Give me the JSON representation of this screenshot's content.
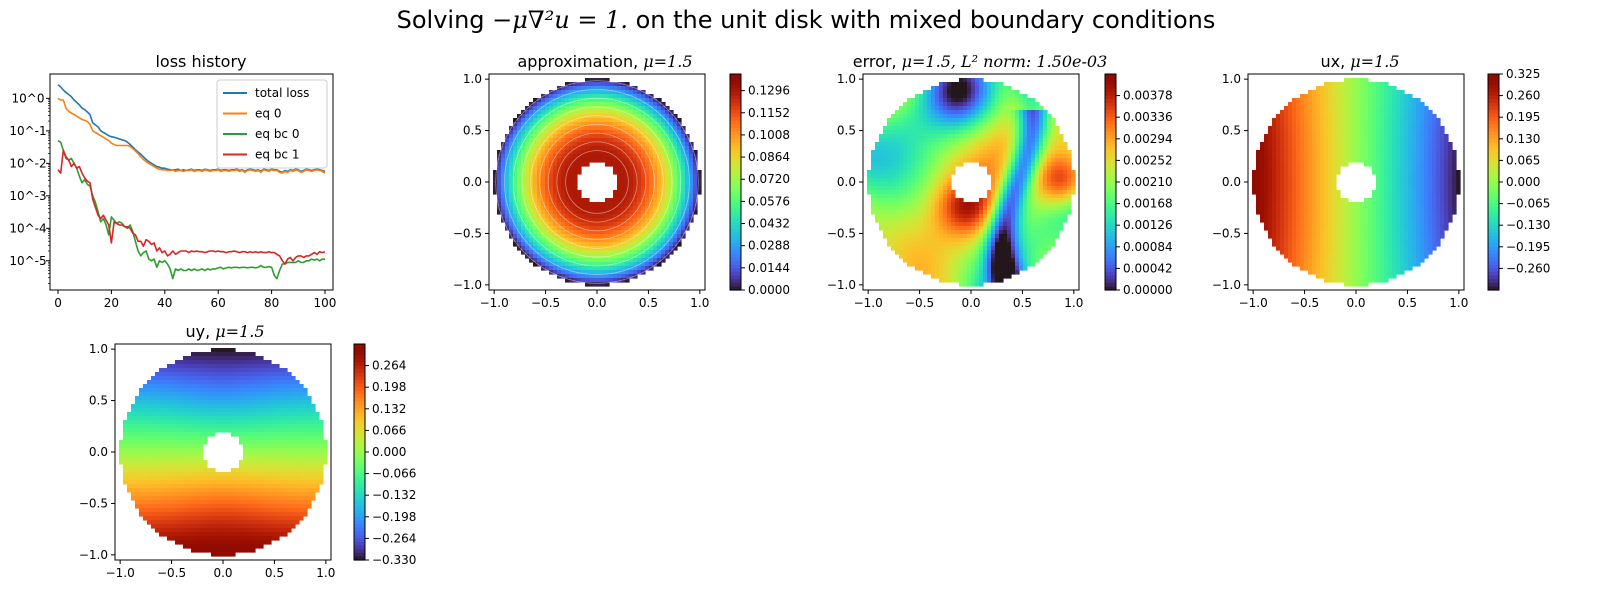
{
  "figure": {
    "title_prefix": "Solving",
    "title_equation": "−μ∇²u = 1.",
    "title_suffix": "on the unit disk with mixed boundary conditions"
  },
  "chart_data": [
    {
      "type": "line",
      "title": "loss history",
      "yscale": "log",
      "xlim": [
        -3,
        103
      ],
      "ylim_log10": [
        -5.9,
        0.75
      ],
      "xticks": [
        0,
        20,
        40,
        60,
        80,
        100
      ],
      "yticks": [
        "10^0",
        "10^-1",
        "10^-2",
        "10^-3",
        "10^-4",
        "10^-5"
      ],
      "legend_position": "top-right",
      "series": [
        {
          "name": "total loss",
          "color": "#1f77b4",
          "log10_values": [
            0.42,
            0.35,
            0.26,
            0.18,
            0.12,
            0.05,
            -0.05,
            -0.12,
            -0.2,
            -0.3,
            -0.35,
            -0.42,
            -0.5,
            -0.75,
            -0.82,
            -0.88,
            -1.0,
            -1.05,
            -1.1,
            -1.15,
            -1.18,
            -1.2,
            -1.22,
            -1.25,
            -1.28,
            -1.3,
            -1.35,
            -1.42,
            -1.5,
            -1.58,
            -1.65,
            -1.72,
            -1.8,
            -1.88,
            -1.95,
            -2.0,
            -2.05,
            -2.1,
            -2.12,
            -2.15,
            -2.15,
            -2.18,
            -2.2,
            -2.2,
            -2.2,
            -2.18,
            -2.22,
            -2.2,
            -2.22,
            -2.2,
            -2.18,
            -2.22,
            -2.2,
            -2.2,
            -2.22,
            -2.18,
            -2.2,
            -2.22,
            -2.2,
            -2.2,
            -2.18,
            -2.22,
            -2.2,
            -2.2,
            -2.22,
            -2.2,
            -2.2,
            -2.18,
            -2.22,
            -2.2,
            -2.25,
            -2.2,
            -2.18,
            -2.2,
            -2.22,
            -2.2,
            -2.25,
            -2.18,
            -2.2,
            -2.22,
            -2.18,
            -2.2,
            -2.2,
            -2.25,
            -2.28,
            -2.22,
            -2.25,
            -2.2,
            -2.22,
            -2.18,
            -2.2,
            -2.25,
            -2.22,
            -2.18,
            -2.2,
            -2.22,
            -2.2,
            -2.18,
            -2.2,
            -2.22,
            -2.25
          ]
        },
        {
          "name": "eq 0",
          "color": "#ff7f0e",
          "log10_values": [
            0.0,
            -0.05,
            -0.05,
            -0.3,
            -0.4,
            -0.45,
            -0.5,
            -0.55,
            -0.6,
            -0.65,
            -0.68,
            -0.72,
            -0.8,
            -1.0,
            -1.05,
            -1.1,
            -1.15,
            -1.2,
            -1.25,
            -1.3,
            -1.38,
            -1.42,
            -1.45,
            -1.45,
            -1.45,
            -1.45,
            -1.45,
            -1.48,
            -1.55,
            -1.62,
            -1.7,
            -1.8,
            -1.88,
            -1.95,
            -2.0,
            -2.05,
            -2.1,
            -2.15,
            -2.18,
            -2.2,
            -2.2,
            -2.22,
            -2.22,
            -2.2,
            -2.25,
            -2.22,
            -2.22,
            -2.25,
            -2.22,
            -2.22,
            -2.2,
            -2.25,
            -2.22,
            -2.22,
            -2.25,
            -2.2,
            -2.22,
            -2.25,
            -2.22,
            -2.22,
            -2.2,
            -2.25,
            -2.22,
            -2.22,
            -2.25,
            -2.22,
            -2.22,
            -2.2,
            -2.25,
            -2.22,
            -2.28,
            -2.22,
            -2.2,
            -2.22,
            -2.25,
            -2.22,
            -2.28,
            -2.2,
            -2.22,
            -2.25,
            -2.2,
            -2.22,
            -2.22,
            -2.28,
            -2.3,
            -2.25,
            -2.28,
            -2.22,
            -2.25,
            -2.2,
            -2.22,
            -2.28,
            -2.25,
            -2.2,
            -2.22,
            -2.25,
            -2.22,
            -2.2,
            -2.22,
            -2.25,
            -2.3
          ]
        },
        {
          "name": "eq bc 0",
          "color": "#2ca02c",
          "log10_values": [
            -1.3,
            -1.35,
            -1.6,
            -1.85,
            -1.9,
            -1.85,
            -2.0,
            -2.15,
            -2.4,
            -2.6,
            -2.5,
            -2.65,
            -2.7,
            -3.0,
            -3.2,
            -3.5,
            -3.8,
            -3.7,
            -3.9,
            -4.2,
            -3.65,
            -3.75,
            -3.85,
            -3.8,
            -3.85,
            -3.95,
            -4.0,
            -3.9,
            -4.1,
            -4.4,
            -4.7,
            -4.85,
            -4.75,
            -4.7,
            -4.95,
            -5.0,
            -4.95,
            -5.2,
            -5.0,
            -5.05,
            -5.0,
            -5.1,
            -5.25,
            -5.55,
            -5.25,
            -5.3,
            -5.25,
            -5.3,
            -5.3,
            -5.25,
            -5.3,
            -5.25,
            -5.3,
            -5.28,
            -5.25,
            -5.3,
            -5.25,
            -5.28,
            -5.25,
            -5.25,
            -5.22,
            -5.2,
            -5.25,
            -5.22,
            -5.2,
            -5.22,
            -5.2,
            -5.2,
            -5.22,
            -5.2,
            -5.2,
            -5.22,
            -5.2,
            -5.2,
            -5.22,
            -5.2,
            -5.15,
            -5.2,
            -5.2,
            -5.18,
            -5.2,
            -5.45,
            -5.55,
            -5.3,
            -5.1,
            -5.1,
            -5.05,
            -5.05,
            -5.05,
            -5.05,
            -5.0,
            -5.05,
            -5.05,
            -5.0,
            -5.0,
            -4.95,
            -4.98,
            -4.95,
            -5.0,
            -4.95,
            -4.95
          ]
        },
        {
          "name": "eq bc 1",
          "color": "#d62728",
          "log10_values": [
            -2.2,
            -2.3,
            -1.6,
            -1.8,
            -1.9,
            -2.1,
            -2.0,
            -2.15,
            -2.1,
            -2.3,
            -2.45,
            -2.55,
            -2.6,
            -3.1,
            -3.35,
            -3.6,
            -3.7,
            -3.6,
            -3.75,
            -3.9,
            -4.45,
            -3.8,
            -3.85,
            -3.9,
            -3.9,
            -3.95,
            -3.95,
            -4.0,
            -4.15,
            -4.2,
            -4.4,
            -4.4,
            -4.55,
            -4.35,
            -4.4,
            -4.5,
            -4.45,
            -4.7,
            -4.6,
            -4.75,
            -4.7,
            -4.85,
            -4.8,
            -4.7,
            -4.8,
            -4.75,
            -4.7,
            -4.7,
            -4.7,
            -4.75,
            -4.7,
            -4.72,
            -4.7,
            -4.72,
            -4.72,
            -4.75,
            -4.72,
            -4.7,
            -4.7,
            -4.72,
            -4.7,
            -4.72,
            -4.72,
            -4.75,
            -4.72,
            -4.72,
            -4.7,
            -4.72,
            -4.75,
            -4.72,
            -4.72,
            -4.75,
            -4.72,
            -4.75,
            -4.72,
            -4.75,
            -4.72,
            -4.75,
            -4.75,
            -4.72,
            -4.75,
            -4.75,
            -4.8,
            -4.85,
            -5.0,
            -5.1,
            -4.95,
            -4.9,
            -5.0,
            -4.9,
            -4.85,
            -4.85,
            -4.9,
            -4.85,
            -4.85,
            -4.8,
            -4.75,
            -4.8,
            -4.72,
            -4.75,
            -4.72
          ]
        }
      ]
    },
    {
      "type": "heatmap",
      "title": "approximation, ",
      "title_param": "μ=1.5",
      "field": "approx",
      "xlim": [
        -1.05,
        1.05
      ],
      "ylim": [
        -1.05,
        1.05
      ],
      "xticks": [
        "−1.0",
        "−0.5",
        "0.0",
        "0.5",
        "1.0"
      ],
      "yticks": [
        "1.0",
        "0.5",
        "0.0",
        "−0.5",
        "−1.0"
      ],
      "vmin": 0,
      "vmax": 0.1404,
      "colorbar_ticks": [
        "0.1296",
        "0.1152",
        "0.1008",
        "0.0864",
        "0.0720",
        "0.0576",
        "0.0432",
        "0.0288",
        "0.0144",
        "0.0000"
      ]
    },
    {
      "type": "heatmap",
      "title": "error, ",
      "title_param": "μ=1.5, L² norm: 1.50e-03",
      "field": "error",
      "xlim": [
        -1.05,
        1.05
      ],
      "ylim": [
        -1.05,
        1.05
      ],
      "xticks": [
        "−1.0",
        "−0.5",
        "0.0",
        "0.5",
        "1.0"
      ],
      "yticks": [
        "1.0",
        "0.5",
        "0.0",
        "−0.5",
        "−1.0"
      ],
      "vmin": 0,
      "vmax": 0.0042,
      "colorbar_ticks": [
        "0.00378",
        "0.00336",
        "0.00294",
        "0.00252",
        "0.00210",
        "0.00168",
        "0.00126",
        "0.00084",
        "0.00042",
        "0.00000"
      ]
    },
    {
      "type": "heatmap",
      "title": "ux, ",
      "title_param": "μ=1.5",
      "field": "ux",
      "xlim": [
        -1.05,
        1.05
      ],
      "ylim": [
        -1.05,
        1.05
      ],
      "xticks": [
        "−1.0",
        "−0.5",
        "0.0",
        "0.5",
        "1.0"
      ],
      "yticks": [
        "1.0",
        "0.5",
        "0.0",
        "−0.5",
        "−1.0"
      ],
      "vmin": -0.325,
      "vmax": 0.325,
      "colorbar_ticks": [
        "0.325",
        "0.260",
        "0.195",
        "0.130",
        "0.065",
        "0.000",
        "−0.065",
        "−0.130",
        "−0.195",
        "−0.260"
      ]
    },
    {
      "type": "heatmap",
      "title": "uy, ",
      "title_param": "μ=1.5",
      "field": "uy",
      "xlim": [
        -1.05,
        1.05
      ],
      "ylim": [
        -1.05,
        1.05
      ],
      "xticks": [
        "−1.0",
        "−0.5",
        "0.0",
        "0.5",
        "1.0"
      ],
      "yticks": [
        "1.0",
        "0.5",
        "0.0",
        "−0.5",
        "−1.0"
      ],
      "vmin": -0.33,
      "vmax": 0.33,
      "colorbar_ticks": [
        "0.264",
        "0.198",
        "0.132",
        "0.066",
        "0.000",
        "−0.066",
        "−0.132",
        "−0.198",
        "−0.264",
        "−0.330"
      ]
    }
  ]
}
